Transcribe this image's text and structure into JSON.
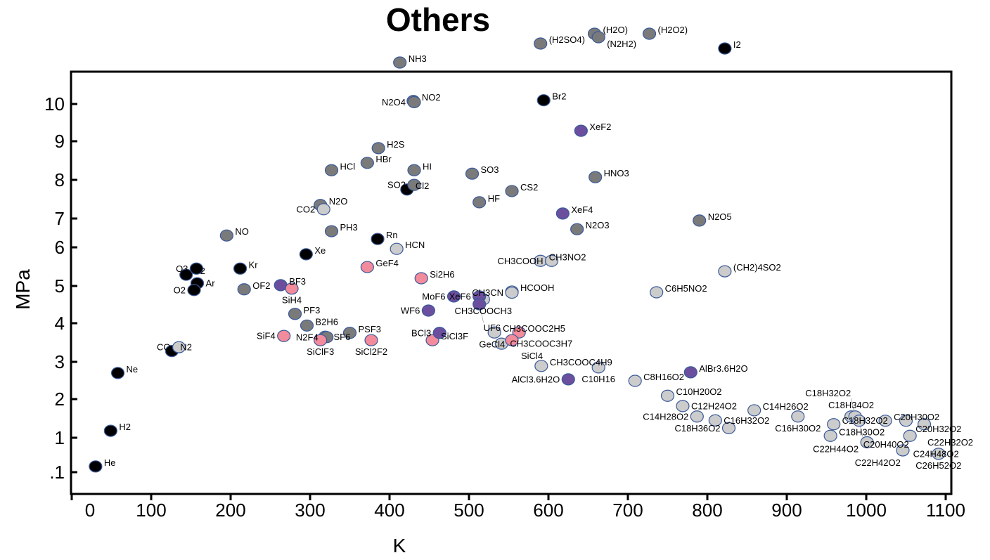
{
  "chart_data": {
    "type": "scatter",
    "title": "Others",
    "xlabel": "K",
    "ylabel": "MPa",
    "xlim": [
      0,
      1100
    ],
    "x_ticks": [
      0,
      100,
      200,
      300,
      400,
      500,
      600,
      700,
      800,
      900,
      1000,
      1100
    ],
    "y_ticks": [
      ".1",
      "1",
      "2",
      "3",
      "4",
      "5",
      "6",
      "7",
      "8",
      "9",
      "10"
    ],
    "y_scale": "non-linear (tick spacing as printed)",
    "grid": false,
    "legend": "none",
    "colors": {
      "black": "#000000",
      "gray": "#7a7a7a",
      "light": "#cccccc",
      "purple": "#6b4f9e",
      "pink": "#f28b9b",
      "outline": "#3a5a9a"
    },
    "points": [
      {
        "label": "He",
        "x": 30,
        "y": 0.25,
        "c": "black"
      },
      {
        "label": "H2",
        "x": 49,
        "y": 1.18,
        "c": "black"
      },
      {
        "label": "Ne",
        "x": 58,
        "y": 2.7,
        "c": "black"
      },
      {
        "label": "N2",
        "x": 126,
        "y": 3.28,
        "c": "black"
      },
      {
        "label": "CO",
        "x": 135,
        "y": 3.38,
        "c": "light"
      },
      {
        "label": "F2",
        "x": 144,
        "y": 5.29,
        "c": "black"
      },
      {
        "label": "O3",
        "x": 157,
        "y": 5.45,
        "c": "black"
      },
      {
        "label": "Ar",
        "x": 158,
        "y": 5.07,
        "c": "black"
      },
      {
        "label": "O2",
        "x": 154,
        "y": 4.89,
        "c": "black"
      },
      {
        "label": "Kr",
        "x": 212,
        "y": 5.45,
        "c": "black"
      },
      {
        "label": "Xe",
        "x": 295,
        "y": 5.82,
        "c": "black"
      },
      {
        "label": "Rn",
        "x": 385,
        "y": 6.29,
        "c": "black"
      },
      {
        "label": "Cl2",
        "x": 422,
        "y": 7.75,
        "c": "black"
      },
      {
        "label": "Br2",
        "x": 594,
        "y": 10.1,
        "c": "black"
      },
      {
        "label": "NO",
        "x": 195,
        "y": 6.41,
        "c": "gray"
      },
      {
        "label": "OF2",
        "x": 217,
        "y": 4.91,
        "c": "gray"
      },
      {
        "label": "PF3",
        "x": 281,
        "y": 4.25,
        "c": "gray"
      },
      {
        "label": "B2H6",
        "x": 296,
        "y": 3.94,
        "c": "gray"
      },
      {
        "label": "SF6",
        "x": 319,
        "y": 3.65,
        "c": "gray"
      },
      {
        "label": "N2F4",
        "x": 321,
        "y": 3.64,
        "c": "gray"
      },
      {
        "label": "PSF3",
        "x": 350,
        "y": 3.75,
        "c": "gray"
      },
      {
        "label": "PH3",
        "x": 327,
        "y": 6.56,
        "c": "gray"
      },
      {
        "label": "N2O",
        "x": 313,
        "y": 7.35,
        "c": "gray"
      },
      {
        "label": "CO2",
        "x": 317,
        "y": 7.24,
        "c": "light"
      },
      {
        "label": "HCl",
        "x": 327,
        "y": 8.25,
        "c": "gray"
      },
      {
        "label": "HBr",
        "x": 372,
        "y": 8.44,
        "c": "gray"
      },
      {
        "label": "H2S",
        "x": 386,
        "y": 8.82,
        "c": "gray"
      },
      {
        "label": "HI",
        "x": 431,
        "y": 8.25,
        "c": "gray"
      },
      {
        "label": "SO2",
        "x": 431,
        "y": 7.87,
        "c": "gray"
      },
      {
        "label": "NO2",
        "x": 430,
        "y": 10.08,
        "c": "gray"
      },
      {
        "label": "N2O4",
        "x": 431,
        "y": 10.05,
        "c": "gray"
      },
      {
        "label": "SO3",
        "x": 504,
        "y": 8.16,
        "c": "gray"
      },
      {
        "label": "HF",
        "x": 513,
        "y": 7.42,
        "c": "gray"
      },
      {
        "label": "CS2",
        "x": 554,
        "y": 7.71,
        "c": "gray"
      },
      {
        "label": "HNO3",
        "x": 659,
        "y": 8.07,
        "c": "gray"
      },
      {
        "label": "N2O3",
        "x": 636,
        "y": 6.63,
        "c": "gray"
      },
      {
        "label": "N2O5",
        "x": 790,
        "y": 6.93,
        "c": "gray"
      },
      {
        "label": "HCN",
        "x": 409,
        "y": 5.96,
        "c": "light"
      },
      {
        "label": "CH3NO2",
        "x": 590,
        "y": 5.65,
        "c": "light"
      },
      {
        "label": "CH3COOH",
        "x": 604,
        "y": 5.65,
        "c": "light"
      },
      {
        "label": "HCOOH",
        "x": 554,
        "y": 4.85,
        "c": "light"
      },
      {
        "label": "CH3CN",
        "x": 554,
        "y": 4.82,
        "c": "light"
      },
      {
        "label": "CH3COOCH3",
        "x": 518,
        "y": 4.64,
        "c": "light"
      },
      {
        "label": "CH3COOC2H5",
        "x": 532,
        "y": 3.76,
        "c": "light"
      },
      {
        "label": "CH3COOC3H7",
        "x": 541,
        "y": 3.47,
        "c": "light"
      },
      {
        "label": "CH3COOC4H9",
        "x": 591,
        "y": 2.89,
        "c": "light"
      },
      {
        "label": "C10H16",
        "x": 663,
        "y": 2.85,
        "c": "light"
      },
      {
        "label": "C8H16O2",
        "x": 709,
        "y": 2.49,
        "c": "light"
      },
      {
        "label": "C6H5NO2",
        "x": 736,
        "y": 4.83,
        "c": "light"
      },
      {
        "label": "(CH2)4SO2",
        "x": 822,
        "y": 5.38,
        "c": "light"
      },
      {
        "label": "BF3",
        "x": 263,
        "y": 5.02,
        "c": "purple"
      },
      {
        "label": "SiH4",
        "x": 277,
        "y": 4.93,
        "c": "pink"
      },
      {
        "label": "SiF4",
        "x": 267,
        "y": 3.67,
        "c": "pink"
      },
      {
        "label": "SiClF3",
        "x": 313,
        "y": 3.56,
        "c": "pink"
      },
      {
        "label": "SiCl2F2",
        "x": 377,
        "y": 3.56,
        "c": "pink"
      },
      {
        "label": "GeF4",
        "x": 372,
        "y": 5.49,
        "c": "pink"
      },
      {
        "label": "Si2H6",
        "x": 440,
        "y": 5.2,
        "c": "pink"
      },
      {
        "label": "SiCl3F",
        "x": 454,
        "y": 3.56,
        "c": "pink"
      },
      {
        "label": "MoF6",
        "x": 481,
        "y": 4.72,
        "c": "purple"
      },
      {
        "label": "WF6",
        "x": 449,
        "y": 4.34,
        "c": "purple"
      },
      {
        "label": "XeF6",
        "x": 513,
        "y": 4.72,
        "c": "purple"
      },
      {
        "label": "UF6",
        "x": 513,
        "y": 4.51,
        "c": "purple"
      },
      {
        "label": "BCl3",
        "x": 463,
        "y": 3.75,
        "c": "purple"
      },
      {
        "label": "XeF2",
        "x": 641,
        "y": 9.28,
        "c": "purple"
      },
      {
        "label": "XeF4",
        "x": 618,
        "y": 7.13,
        "c": "purple"
      },
      {
        "label": "AlCl3.6H2O",
        "x": 625,
        "y": 2.53,
        "c": "purple"
      },
      {
        "label": "AlBr3.6H2O",
        "x": 779,
        "y": 2.72,
        "c": "purple"
      },
      {
        "label": "GeCl4",
        "x": 563,
        "y": 3.76,
        "c": "pink"
      },
      {
        "label": "SiCl4",
        "x": 554,
        "y": 3.56,
        "c": "pink"
      },
      {
        "label": "C10H20O2",
        "x": 750,
        "y": 2.09,
        "c": "light"
      },
      {
        "label": "C12H24O2",
        "x": 769,
        "y": 1.82,
        "c": "light"
      },
      {
        "label": "C14H28O2",
        "x": 787,
        "y": 1.55,
        "c": "light"
      },
      {
        "label": "C16H32O2",
        "x": 810,
        "y": 1.45,
        "c": "light"
      },
      {
        "label": "C18H36O2",
        "x": 827,
        "y": 1.25,
        "c": "light"
      },
      {
        "label": "C14H26O2",
        "x": 859,
        "y": 1.71,
        "c": "light"
      },
      {
        "label": "C16H30O2",
        "x": 914,
        "y": 1.55,
        "c": "light"
      },
      {
        "label": "C18H32O2",
        "x": 959,
        "y": 1.35,
        "c": "light"
      },
      {
        "label": "C18H30O2",
        "x": 955,
        "y": 1.05,
        "c": "light"
      },
      {
        "label": "C18H34O2",
        "x": 981,
        "y": 1.55,
        "c": "light"
      },
      {
        "label": "C18H32O2",
        "x": 986,
        "y": 1.55,
        "c": "light"
      },
      {
        "label": "C20H40O2",
        "x": 991,
        "y": 1.44,
        "c": "light"
      },
      {
        "label": "C22H44O2",
        "x": 1001,
        "y": 0.88,
        "c": "light"
      },
      {
        "label": "C20H30O2",
        "x": 1024,
        "y": 1.44,
        "c": "light"
      },
      {
        "label": "C20H32O2",
        "x": 1050,
        "y": 1.44,
        "c": "light"
      },
      {
        "label": "C22H32O2",
        "x": 1073,
        "y": 1.35,
        "c": "light"
      },
      {
        "label": "C24H48O2",
        "x": 1055,
        "y": 1.05,
        "c": "light"
      },
      {
        "label": "C22H42O2",
        "x": 1046,
        "y": 0.67,
        "c": "light"
      },
      {
        "label": "C26H52O2",
        "x": 1091,
        "y": 0.58,
        "c": "light"
      }
    ],
    "others": [
      {
        "label": "NH3",
        "x": 413,
        "c": "gray"
      },
      {
        "label": "(H2SO4)",
        "x": 590,
        "c": "gray"
      },
      {
        "label": "(H2O)",
        "x": 658,
        "c": "gray"
      },
      {
        "label": "(N2H2)",
        "x": 663,
        "c": "gray"
      },
      {
        "label": "(H2O2)",
        "x": 727,
        "c": "gray"
      },
      {
        "label": "I2",
        "x": 822,
        "c": "black"
      }
    ]
  }
}
